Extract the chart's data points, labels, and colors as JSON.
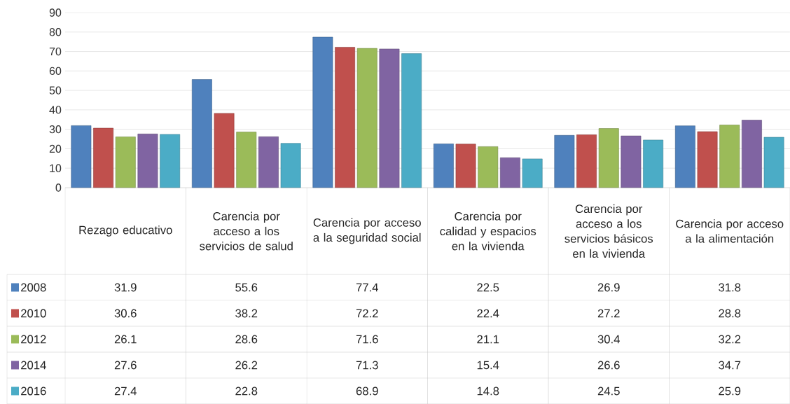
{
  "chart_data": {
    "type": "bar",
    "categories": [
      "Rezago educativo",
      "Carencia por acceso a los servicios de salud",
      "Carencia por acceso a la seguridad social",
      "Carencia por calidad y espacios en la vivienda",
      "Carencia por acceso a los servicios básicos en la vivienda",
      "Carencia por acceso a la alimentación"
    ],
    "series": [
      {
        "name": "2008",
        "color": "#4f81bd",
        "values": [
          31.9,
          55.6,
          77.4,
          22.5,
          26.9,
          31.8
        ]
      },
      {
        "name": "2010",
        "color": "#c0504d",
        "values": [
          30.6,
          38.2,
          72.2,
          22.4,
          27.2,
          28.8
        ]
      },
      {
        "name": "2012",
        "color": "#9bbb59",
        "values": [
          26.1,
          28.6,
          71.6,
          21.1,
          30.4,
          32.2
        ]
      },
      {
        "name": "2014",
        "color": "#8064a2",
        "values": [
          27.6,
          26.2,
          71.3,
          15.4,
          26.6,
          34.7
        ]
      },
      {
        "name": "2016",
        "color": "#4bacc6",
        "values": [
          27.4,
          22.8,
          68.9,
          14.8,
          24.5,
          25.9
        ]
      }
    ],
    "ylim": [
      0,
      90
    ],
    "yticks": [
      0,
      10,
      20,
      30,
      40,
      50,
      60,
      70,
      80,
      90
    ],
    "grid": "y",
    "legend": "bottom",
    "data_labels": true
  }
}
